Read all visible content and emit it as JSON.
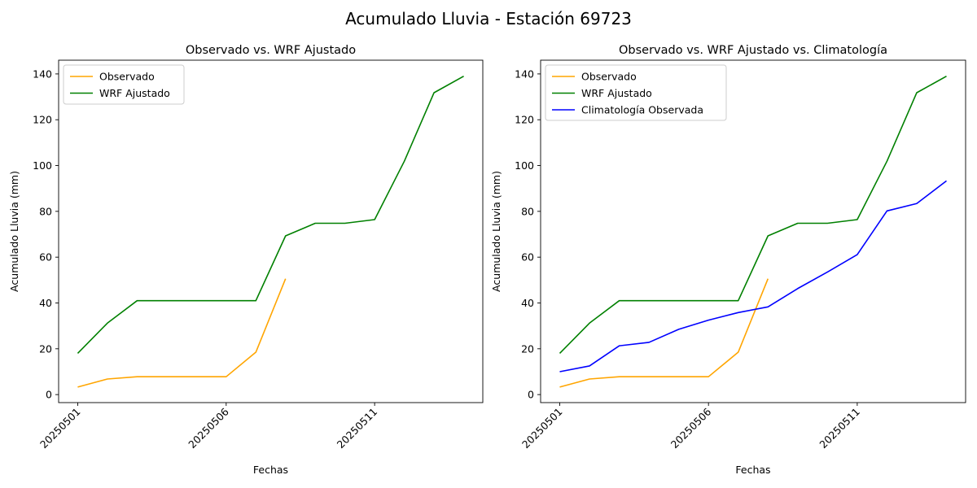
{
  "figure": {
    "suptitle": "Acumulado Lluvia - Estación 69723"
  },
  "chart_data": [
    {
      "type": "line",
      "title": "Observado vs. WRF Ajustado",
      "xlabel": "Fechas",
      "ylabel": "Acumulado Lluvia (mm)",
      "x": [
        "20250501",
        "20250502",
        "20250503",
        "20250504",
        "20250505",
        "20250506",
        "20250507",
        "20250508",
        "20250509",
        "20250510",
        "20250511",
        "20250512",
        "20250513",
        "20250514"
      ],
      "xticks": [
        "20250501",
        "20250506",
        "20250511"
      ],
      "yticks": [
        0,
        20,
        40,
        60,
        80,
        100,
        120,
        140
      ],
      "ylim": [
        -3.5,
        146
      ],
      "grid": false,
      "legend": "top-left",
      "series": [
        {
          "name": "Observado",
          "color": "#FFA500",
          "values": [
            3.3,
            6.8,
            7.8,
            7.8,
            7.8,
            7.8,
            18.5,
            50.6,
            null,
            null,
            null,
            null,
            null,
            null
          ]
        },
        {
          "name": "WRF Ajustado",
          "color": "#008000",
          "values": [
            18.0,
            31.2,
            41.0,
            41.0,
            41.0,
            41.0,
            41.0,
            69.3,
            74.8,
            74.8,
            76.4,
            101.9,
            131.8,
            139.0
          ]
        }
      ]
    },
    {
      "type": "line",
      "title": "Observado vs. WRF Ajustado vs. Climatología",
      "xlabel": "Fechas",
      "ylabel": "Acumulado Lluvia (mm)",
      "x": [
        "20250501",
        "20250502",
        "20250503",
        "20250504",
        "20250505",
        "20250506",
        "20250507",
        "20250508",
        "20250509",
        "20250510",
        "20250511",
        "20250512",
        "20250513",
        "20250514"
      ],
      "xticks": [
        "20250501",
        "20250506",
        "20250511"
      ],
      "yticks": [
        0,
        20,
        40,
        60,
        80,
        100,
        120,
        140
      ],
      "ylim": [
        -3.5,
        146
      ],
      "grid": false,
      "legend": "top-left",
      "series": [
        {
          "name": "Observado",
          "color": "#FFA500",
          "values": [
            3.3,
            6.8,
            7.8,
            7.8,
            7.8,
            7.8,
            18.5,
            50.6,
            null,
            null,
            null,
            null,
            null,
            null
          ]
        },
        {
          "name": "WRF Ajustado",
          "color": "#008000",
          "values": [
            18.0,
            31.2,
            41.0,
            41.0,
            41.0,
            41.0,
            41.0,
            69.3,
            74.8,
            74.8,
            76.4,
            101.9,
            131.8,
            139.0
          ]
        },
        {
          "name": "Climatología Observada",
          "color": "#0000FF",
          "values": [
            10.0,
            12.5,
            21.3,
            22.8,
            28.5,
            32.5,
            35.8,
            38.3,
            46.3,
            53.5,
            61.1,
            80.2,
            83.4,
            93.3
          ]
        }
      ]
    }
  ]
}
